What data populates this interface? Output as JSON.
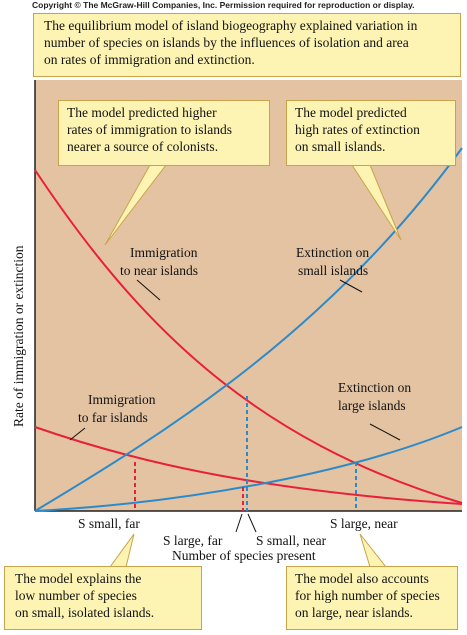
{
  "copyright": "Copyright © The McGraw-Hill Companies, Inc. Permission required for reproduction or display.",
  "top_box": {
    "lines": [
      "The equilibrium model of island biogeography explained variation in",
      "number of species on islands by the influences of isolation and area",
      "on rates of immigration and extinction."
    ]
  },
  "callout_immigration": {
    "lines": [
      "The model predicted higher",
      "rates of immigration to islands",
      "nearer a source of colonists."
    ]
  },
  "callout_extinction": {
    "lines": [
      "The model predicted",
      "high rates of extinction",
      "on small islands."
    ]
  },
  "callout_small_isolated": {
    "lines": [
      "The model explains the",
      "low number of species",
      "on small, isolated islands."
    ]
  },
  "callout_large_near": {
    "lines": [
      "The model also accounts",
      "for high number of species",
      "on large, near islands."
    ]
  },
  "curves": {
    "immigration_near": {
      "lines": [
        "Immigration",
        "to near islands"
      ],
      "color": "#e8203a"
    },
    "immigration_far": {
      "lines": [
        "Immigration",
        "to far islands"
      ],
      "color": "#e8203a"
    },
    "extinction_small": {
      "lines": [
        "Extinction on",
        "small islands"
      ],
      "color": "#2c8ac9"
    },
    "extinction_large": {
      "lines": [
        "Extinction on",
        "large islands"
      ],
      "color": "#2c8ac9"
    }
  },
  "axes": {
    "ylabel": "Rate of immigration or extinction",
    "xlabel": "Number of species present"
  },
  "equilibria": {
    "s_small_far": "S small, far",
    "s_large_far": "S large, far",
    "s_small_near": "S small, near",
    "s_large_near": "S large, near"
  },
  "colors": {
    "plot_bg": "#e4c3a3",
    "callout_bg": "#fdf4b4",
    "callout_border": "#c9a34a",
    "immigration": "#e8203a",
    "extinction": "#2c8ac9"
  }
}
